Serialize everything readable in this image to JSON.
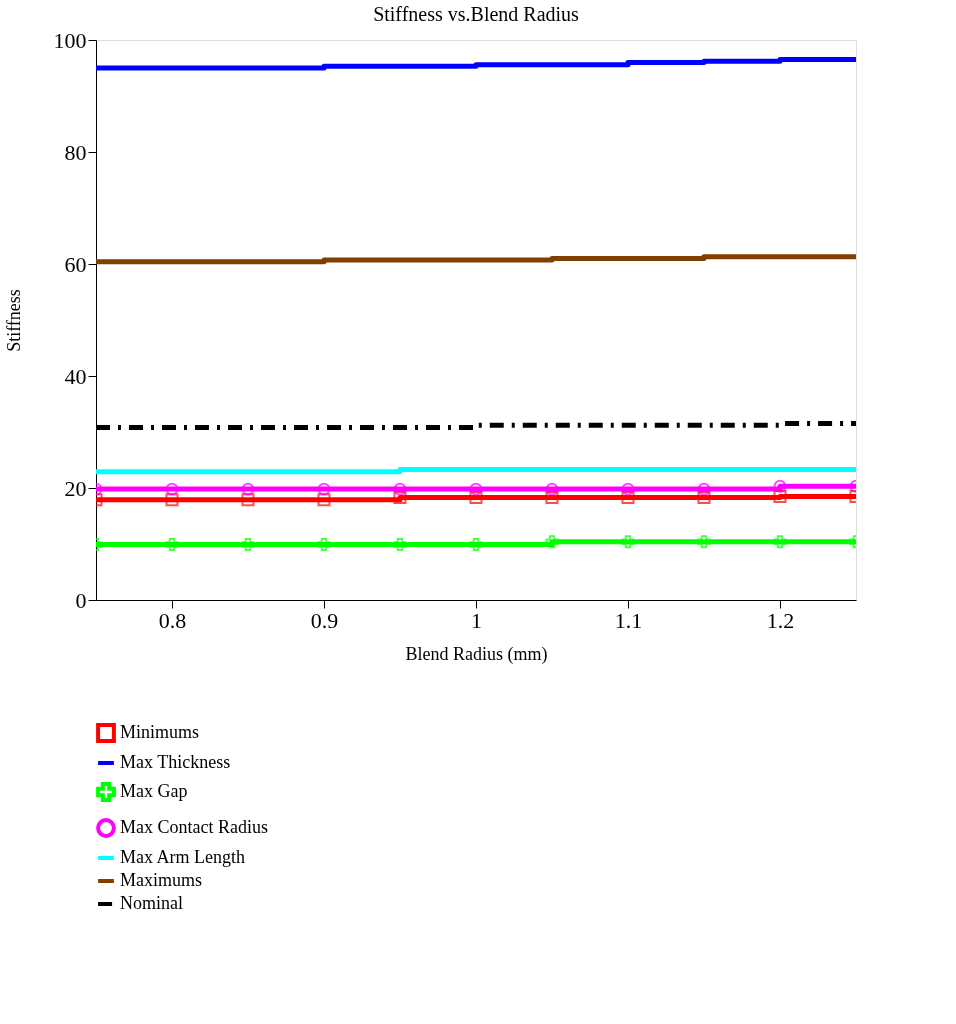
{
  "chart_data": {
    "type": "line",
    "title": "Stiffness vs.Blend Radius",
    "xlabel": "Blend Radius (mm)",
    "ylabel": "Stiffness",
    "xlim": [
      0.75,
      1.25
    ],
    "xticks": [
      0.8,
      0.9,
      1,
      1.1,
      1.2
    ],
    "ylim": [
      0,
      100
    ],
    "yticks": [
      0,
      20,
      40,
      60,
      80,
      100
    ],
    "grid": false,
    "legend": "bottom left",
    "x": [
      0.75,
      0.8,
      0.85,
      0.9,
      0.95,
      1.0,
      1.05,
      1.1,
      1.15,
      1.2,
      1.25
    ],
    "series": [
      {
        "name": "Minimums",
        "color": "#ff0000",
        "marker": "square",
        "values": [
          17.9,
          17.9,
          17.9,
          17.9,
          18.3,
          18.3,
          18.3,
          18.3,
          18.3,
          18.5,
          18.5
        ]
      },
      {
        "name": "Max Thickness",
        "color": "#0000ff",
        "values": [
          95.0,
          95.0,
          95.0,
          95.3,
          95.3,
          95.6,
          95.6,
          96.0,
          96.2,
          96.5,
          96.9
        ]
      },
      {
        "name": "Max Gap",
        "color": "#00ff00",
        "marker": "cross",
        "values": [
          9.9,
          9.9,
          9.9,
          9.9,
          9.9,
          9.9,
          10.4,
          10.4,
          10.4,
          10.4,
          10.4
        ]
      },
      {
        "name": "Max Contact Radius",
        "color": "#ff00ff",
        "marker": "circle",
        "values": [
          19.8,
          19.8,
          19.8,
          19.8,
          19.8,
          19.8,
          19.8,
          19.8,
          19.8,
          20.3,
          20.3
        ]
      },
      {
        "name": "Max Arm Length",
        "color": "#00ffff",
        "values": [
          22.9,
          22.9,
          22.9,
          22.9,
          23.3,
          23.3,
          23.3,
          23.3,
          23.3,
          23.3,
          23.7
        ]
      },
      {
        "name": "Maximums",
        "color": "#804000",
        "values": [
          60.4,
          60.4,
          60.4,
          60.7,
          60.7,
          60.7,
          61.0,
          61.0,
          61.3,
          61.3,
          61.6
        ]
      },
      {
        "name": "Nominal",
        "color": "#000000",
        "line_style": "dashed",
        "values": [
          30.8,
          30.8,
          30.8,
          30.8,
          30.8,
          31.2,
          31.2,
          31.2,
          31.2,
          31.5,
          31.5
        ]
      }
    ]
  }
}
